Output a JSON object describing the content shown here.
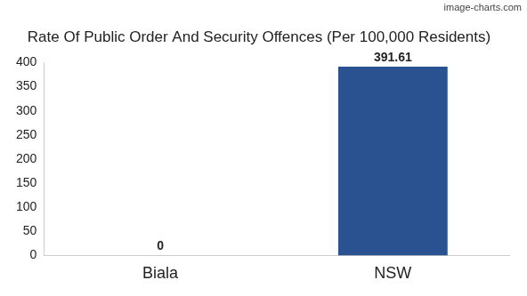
{
  "chart_data": {
    "type": "bar",
    "title": "Rate Of Public Order And Security Offences (Per 100,000 Residents)",
    "categories": [
      "Biala",
      "NSW"
    ],
    "values": [
      0,
      391.61
    ],
    "color": "#2a5290",
    "ylim": [
      0,
      400
    ],
    "yticks": [
      0,
      50,
      100,
      150,
      200,
      250,
      300,
      350,
      400
    ],
    "grid": false,
    "data_labels": true,
    "annotations": [
      "image-charts.com"
    ]
  }
}
